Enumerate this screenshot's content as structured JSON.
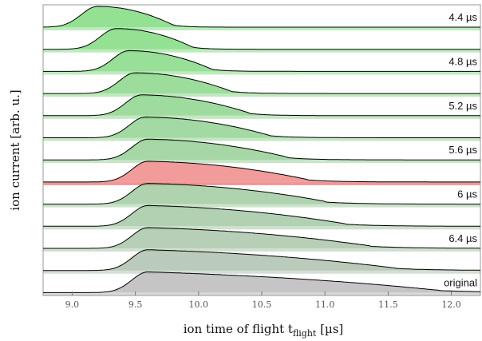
{
  "chart_data": {
    "type": "area",
    "title": "",
    "xlabel": "ion time of flight t",
    "xlabel_sub": "flight",
    "xlabel_unit": " [µs]",
    "ylabel": "ion current [arb. u.]",
    "xlim": [
      8.77,
      12.23
    ],
    "xticks": [
      "9.0",
      "9.5",
      "10.0",
      "10.5",
      "11.0",
      "11.5",
      "12.0"
    ],
    "grid": false,
    "highlight_color": "#f08a8a",
    "series": [
      {
        "label": "4.4 µs",
        "peak": 9.2,
        "fall": 9.8,
        "tail": 0.0,
        "color_mix": 0.0
      },
      {
        "label": "",
        "peak": 9.35,
        "fall": 9.95,
        "tail": 0.02,
        "color_mix": 0.0
      },
      {
        "label": "4.8 µs",
        "peak": 9.45,
        "fall": 10.1,
        "tail": 0.04,
        "color_mix": 0.08
      },
      {
        "label": "",
        "peak": 9.5,
        "fall": 10.25,
        "tail": 0.06,
        "color_mix": 0.15
      },
      {
        "label": "5.2 µs",
        "peak": 9.55,
        "fall": 10.4,
        "tail": 0.08,
        "color_mix": 0.22
      },
      {
        "label": "",
        "peak": 9.58,
        "fall": 10.55,
        "tail": 0.1,
        "color_mix": 0.3
      },
      {
        "label": "5.6 µs",
        "peak": 9.6,
        "fall": 10.7,
        "tail": 0.12,
        "color_mix": 0.38
      },
      {
        "label": "",
        "peak": 9.6,
        "fall": 10.85,
        "tail": 0.14,
        "color_mix": 0.0,
        "highlight": true
      },
      {
        "label": "6 µs",
        "peak": 9.6,
        "fall": 11.0,
        "tail": 0.16,
        "color_mix": 0.52
      },
      {
        "label": "",
        "peak": 9.6,
        "fall": 11.15,
        "tail": 0.18,
        "color_mix": 0.6
      },
      {
        "label": "6.4 µs",
        "peak": 9.6,
        "fall": 11.35,
        "tail": 0.2,
        "color_mix": 0.7
      },
      {
        "label": "",
        "peak": 9.6,
        "fall": 11.55,
        "tail": 0.22,
        "color_mix": 0.8
      },
      {
        "label": "original",
        "peak": 9.6,
        "fall": 11.9,
        "tail": 0.25,
        "color_mix": 1.0
      }
    ]
  }
}
